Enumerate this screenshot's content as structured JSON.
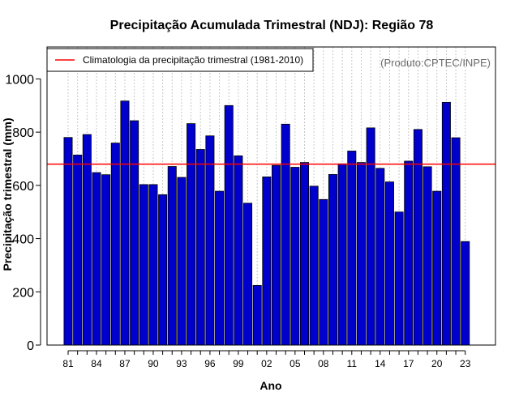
{
  "chart_data": {
    "type": "bar",
    "title": "Precipitação Acumulada Trimestral (NDJ): Região 78",
    "xlabel": "Ano",
    "ylabel": "Precipitação trimestral (mm)",
    "ylim": [
      0,
      1120
    ],
    "yticks": [
      0,
      200,
      400,
      600,
      800,
      1000
    ],
    "grid": "vertical dotted",
    "legend": {
      "position": "top-left",
      "entries": [
        "Climatologia da precipitação trimestral (1981-2010)"
      ]
    },
    "credit": "(Produto:CPTEC/INPE)",
    "years": [
      1981,
      1982,
      1983,
      1984,
      1985,
      1986,
      1987,
      1988,
      1989,
      1990,
      1991,
      1992,
      1993,
      1994,
      1995,
      1996,
      1997,
      1998,
      1999,
      2000,
      2001,
      2002,
      2003,
      2004,
      2005,
      2006,
      2007,
      2008,
      2009,
      2010,
      2011,
      2012,
      2013,
      2014,
      2015,
      2016,
      2017,
      2018,
      2019,
      2020,
      2021,
      2022,
      2023
    ],
    "values": [
      780,
      714,
      791,
      648,
      640,
      759,
      917,
      843,
      603,
      603,
      565,
      671,
      630,
      832,
      735,
      786,
      578,
      900,
      711,
      533,
      224,
      632,
      675,
      830,
      668,
      686,
      597,
      547,
      641,
      681,
      729,
      686,
      816,
      664,
      613,
      500,
      691,
      810,
      670,
      578,
      912,
      779,
      389
    ],
    "x_tick_labels": [
      "81",
      "84",
      "87",
      "90",
      "93",
      "96",
      "99",
      "02",
      "05",
      "08",
      "11",
      "14",
      "17",
      "20",
      "23"
    ],
    "x_tick_years": [
      1981,
      1984,
      1987,
      1990,
      1993,
      1996,
      1999,
      2002,
      2005,
      2008,
      2011,
      2014,
      2017,
      2020,
      2023
    ],
    "reference_line": {
      "name": "Climatologia da precipitação trimestral (1981-2010)",
      "value": 680
    },
    "colors": {
      "bar_fill": "#0000cd",
      "bar_edge": "#000000",
      "reference_line": "#ff0000",
      "grid": "#c8c8c8"
    }
  }
}
